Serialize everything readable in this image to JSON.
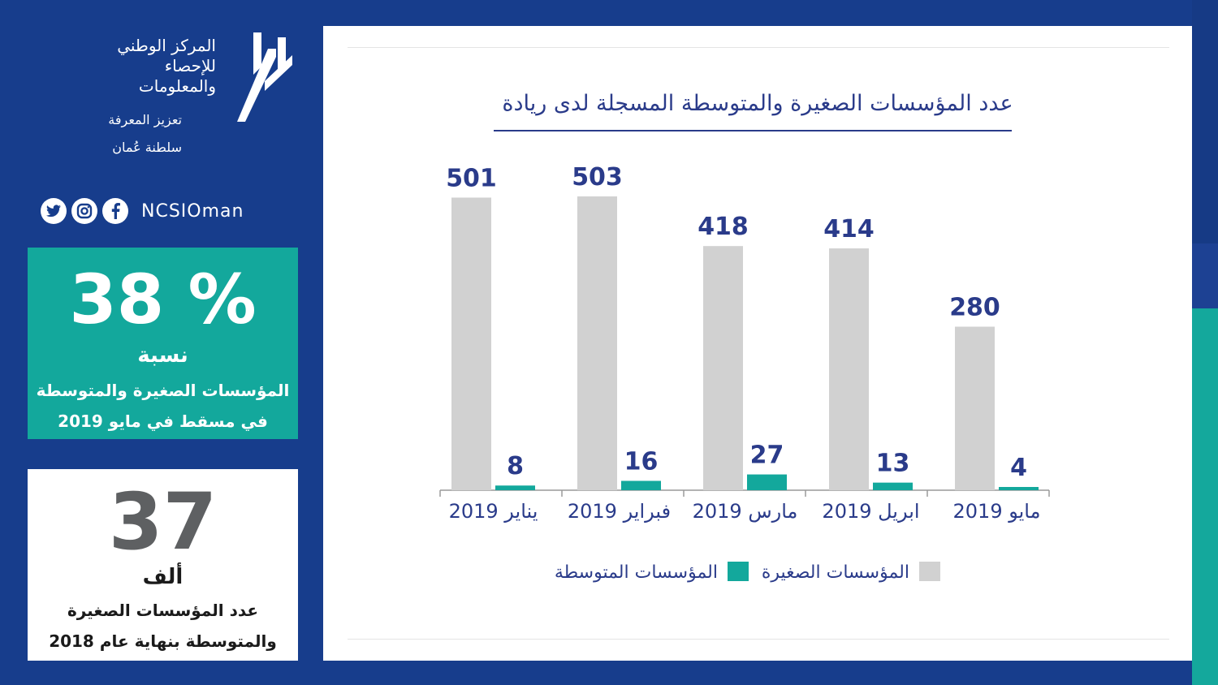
{
  "logo": {
    "title_line1": "المركز الوطني",
    "title_line2": "للإحصاء",
    "title_line3": "والمعلومات",
    "subtitle": "تعزيز المعرفة",
    "country": "سلطنة عُمان"
  },
  "social": {
    "icons": [
      "twitter-icon",
      "instagram-icon",
      "facebook-icon"
    ],
    "handle": "NCSIOman"
  },
  "stat_percent": {
    "value": "38 %",
    "label": "نسبة",
    "line2": "المؤسسات الصغيرة والمتوسطة",
    "line3": "في مسقط في مايو 2019"
  },
  "stat_count": {
    "value": "37",
    "unit": "ألف",
    "line2": "عدد المؤسسات الصغيرة",
    "line3": "والمتوسطة بنهاية عام 2018"
  },
  "colors": {
    "navy": "#173d8c",
    "teal": "#13a89c",
    "small_bar": "#d1d1d1",
    "medium_bar": "#13a89c",
    "label_text": "#2a3b8a"
  },
  "chart_data": {
    "type": "bar",
    "title": "عدد المؤسسات الصغيرة والمتوسطة المسجلة لدى ريادة",
    "categories": [
      "يناير 2019",
      "فبراير 2019",
      "مارس 2019",
      "ابريل 2019",
      "مايو 2019"
    ],
    "series": [
      {
        "name": "المؤسسات الصغيرة",
        "values": [
          501,
          503,
          418,
          414,
          280
        ]
      },
      {
        "name": "المؤسسات المتوسطة",
        "values": [
          8,
          16,
          27,
          13,
          4
        ]
      }
    ],
    "ylim": [
      0,
      503
    ],
    "grid": false,
    "legend": "bottom"
  }
}
